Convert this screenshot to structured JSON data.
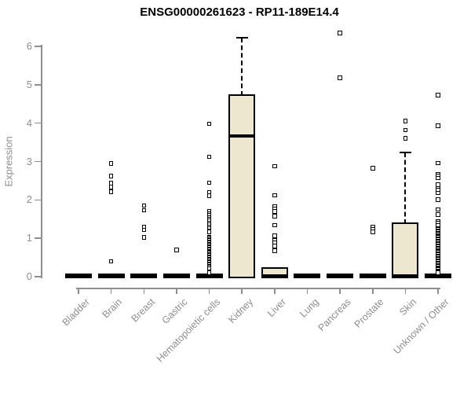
{
  "title": "ENSG00000261623 - RP11-189E14.4",
  "chart_data": {
    "type": "boxplot",
    "title": "ENSG00000261623 - RP11-189E14.4",
    "ylabel": "Expression",
    "ylim": [
      0,
      6
    ],
    "yticks": [
      0,
      1,
      2,
      3,
      4,
      5,
      6
    ],
    "grid": false,
    "box_fill": "#ECE7CE",
    "box_border": "#000000",
    "axis_color": "#8E8E8E",
    "categories": [
      "Bladder",
      "Brain",
      "Breast",
      "Gastric",
      "Hematopoietic cells",
      "Kidney",
      "Liver",
      "Lung",
      "Pancreas",
      "Prostate",
      "Skin",
      "Unknown / Other"
    ],
    "series": [
      {
        "category": "Bladder",
        "q1": 0,
        "median": 0,
        "q3": 0.04,
        "whisker_low": 0,
        "whisker_high": 0.04,
        "outliers": []
      },
      {
        "category": "Brain",
        "q1": 0,
        "median": 0,
        "q3": 0.04,
        "whisker_low": 0,
        "whisker_high": 0.04,
        "outliers": [
          2.95,
          2.62,
          2.44,
          2.33,
          2.21,
          0.4
        ]
      },
      {
        "category": "Breast",
        "q1": 0,
        "median": 0,
        "q3": 0.04,
        "whisker_low": 0,
        "whisker_high": 0.04,
        "outliers": [
          1.85,
          1.73,
          1.3,
          1.22,
          1.02
        ]
      },
      {
        "category": "Gastric",
        "q1": 0,
        "median": 0,
        "q3": 0.04,
        "whisker_low": 0,
        "whisker_high": 0.04,
        "outliers": [
          0.7
        ]
      },
      {
        "category": "Hematopoietic cells",
        "q1": 0,
        "median": 0,
        "q3": 0.04,
        "whisker_low": 0,
        "whisker_high": 0.04,
        "outliers": [
          3.98,
          3.12,
          2.45,
          2.19,
          2.11,
          1.7,
          1.65,
          1.6,
          1.55,
          1.5,
          1.45,
          1.4,
          1.35,
          1.3,
          1.25,
          1.2,
          1.17,
          1.03,
          1.0,
          0.97,
          0.94,
          0.91,
          0.88,
          0.85,
          0.82,
          0.79,
          0.76,
          0.73,
          0.7,
          0.67,
          0.64,
          0.61,
          0.58,
          0.55,
          0.52,
          0.49,
          0.46,
          0.43,
          0.4,
          0.37,
          0.34,
          0.31,
          0.28,
          0.25,
          0.22,
          0.1
        ]
      },
      {
        "category": "Kidney",
        "q1": 0,
        "median": 3.67,
        "q3": 4.72,
        "whisker_low": 0,
        "whisker_high": 6.22,
        "outliers": []
      },
      {
        "category": "Liver",
        "q1": 0,
        "median": 0.02,
        "q3": 0.2,
        "whisker_low": 0,
        "whisker_high": 0.2,
        "outliers": [
          2.88,
          2.12,
          1.83,
          1.76,
          1.7,
          1.58,
          1.34,
          1.07,
          0.94,
          0.88,
          0.8,
          0.68
        ]
      },
      {
        "category": "Lung",
        "q1": 0,
        "median": 0,
        "q3": 0.04,
        "whisker_low": 0,
        "whisker_high": 0.04,
        "outliers": []
      },
      {
        "category": "Pancreas",
        "q1": 0,
        "median": 0,
        "q3": 0.04,
        "whisker_low": 0,
        "whisker_high": 0.04,
        "outliers": [
          6.35,
          5.18
        ]
      },
      {
        "category": "Prostate",
        "q1": 0,
        "median": 0,
        "q3": 0.04,
        "whisker_low": 0,
        "whisker_high": 0.04,
        "outliers": [
          2.83,
          1.3,
          1.24,
          1.17
        ]
      },
      {
        "category": "Skin",
        "q1": 0,
        "median": 0.02,
        "q3": 1.38,
        "whisker_low": 0,
        "whisker_high": 3.24,
        "outliers": [
          4.05,
          3.82,
          3.6
        ]
      },
      {
        "category": "Unknown / Other",
        "q1": 0,
        "median": 0,
        "q3": 0.04,
        "whisker_low": 0,
        "whisker_high": 0.04,
        "outliers": [
          4.73,
          3.93,
          2.96,
          2.67,
          2.62,
          2.57,
          2.4,
          2.3,
          2.25,
          2.18,
          2.01,
          1.75,
          1.62,
          1.44,
          1.4,
          1.34,
          1.23,
          1.2,
          1.17,
          1.14,
          1.11,
          1.08,
          1.05,
          1.02,
          0.99,
          0.96,
          0.93,
          0.9,
          0.87,
          0.84,
          0.81,
          0.78,
          0.75,
          0.72,
          0.69,
          0.66,
          0.63,
          0.6,
          0.57,
          0.54,
          0.51,
          0.48,
          0.45,
          0.42,
          0.39,
          0.36,
          0.33,
          0.3,
          0.27,
          0.24,
          0.21,
          0.18,
          0.15,
          0.12,
          0.1
        ]
      }
    ]
  }
}
